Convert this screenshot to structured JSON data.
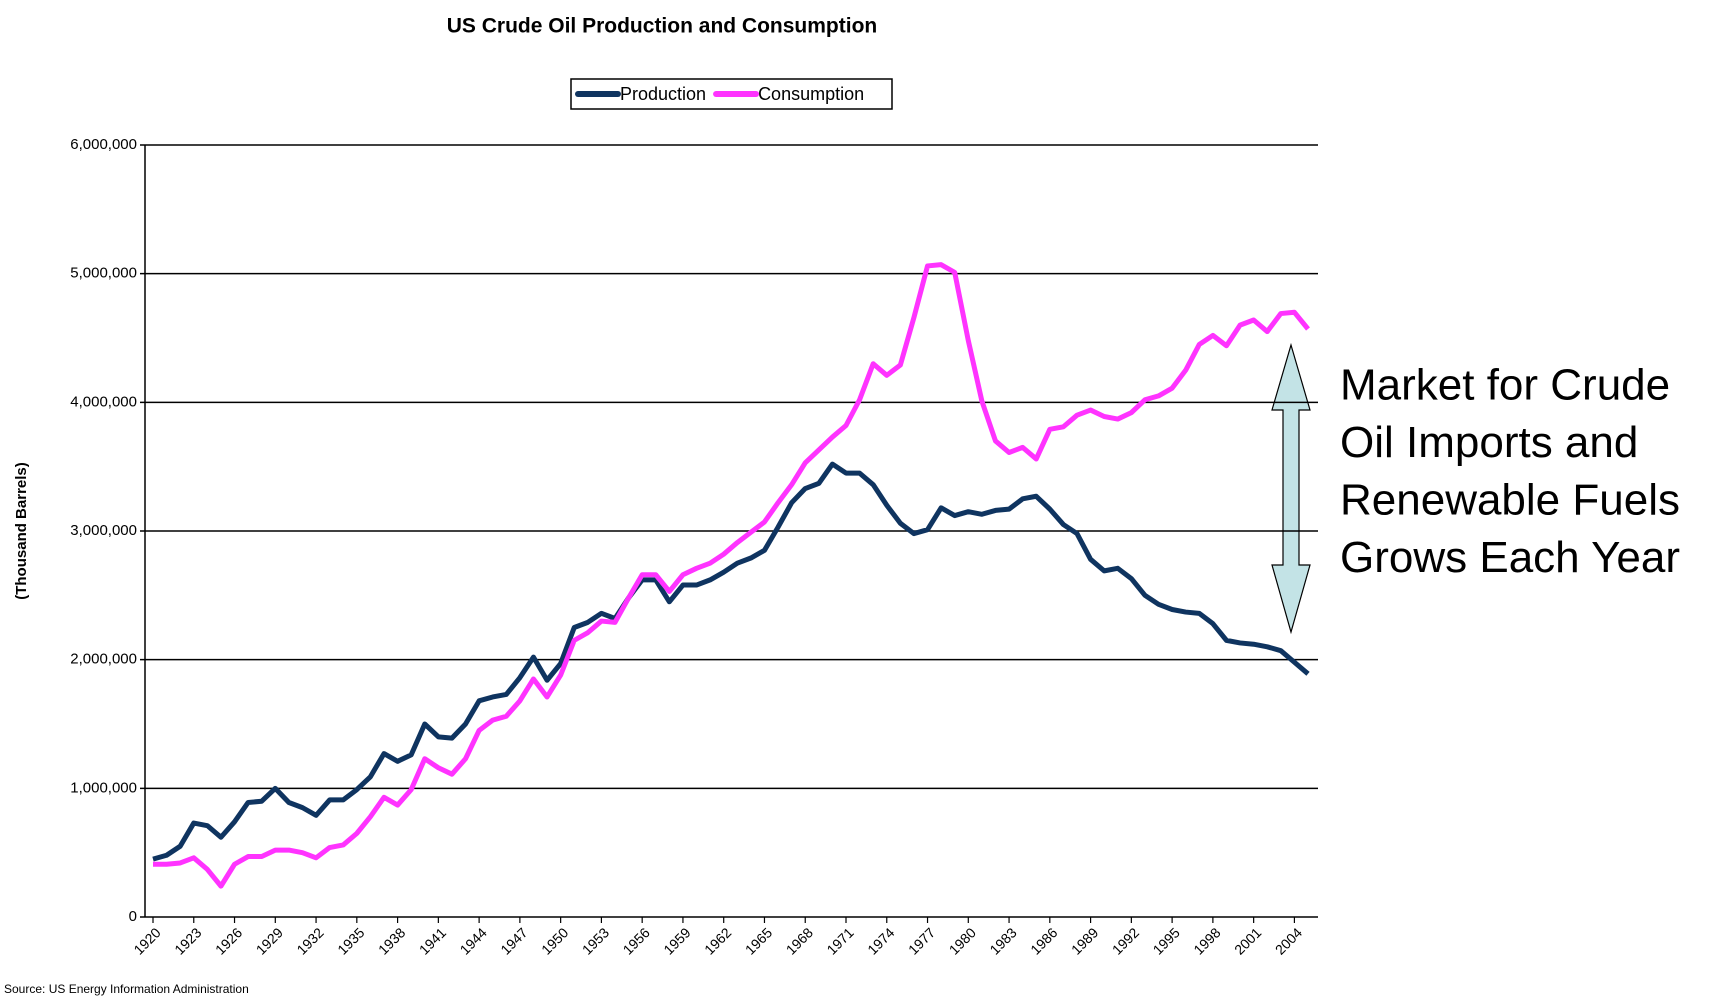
{
  "chart_data": {
    "type": "line",
    "title": "US Crude Oil Production and Consumption",
    "y_label": "(Thousand Barrels)",
    "source": "Source: US Energy Information Administration",
    "annotation": [
      "Market for Crude",
      "Oil Imports and",
      "Renewable Fuels",
      "Grows Each Year"
    ],
    "legend": "top",
    "grid": true,
    "x": [
      1920,
      1921,
      1922,
      1923,
      1924,
      1925,
      1926,
      1927,
      1928,
      1929,
      1930,
      1931,
      1932,
      1933,
      1934,
      1935,
      1936,
      1937,
      1938,
      1939,
      1940,
      1941,
      1942,
      1943,
      1944,
      1945,
      1946,
      1947,
      1948,
      1949,
      1950,
      1951,
      1952,
      1953,
      1954,
      1955,
      1956,
      1957,
      1958,
      1959,
      1960,
      1961,
      1962,
      1963,
      1964,
      1965,
      1966,
      1967,
      1968,
      1969,
      1970,
      1971,
      1972,
      1973,
      1974,
      1975,
      1976,
      1977,
      1978,
      1979,
      1980,
      1981,
      1982,
      1983,
      1984,
      1985,
      1986,
      1987,
      1988,
      1989,
      1990,
      1991,
      1992,
      1993,
      1994,
      1995,
      1996,
      1997,
      1998,
      1999,
      2000,
      2001,
      2002,
      2003,
      2004,
      2005
    ],
    "xlim": [
      1920,
      2005
    ],
    "xticks": [
      1920,
      1923,
      1926,
      1929,
      1932,
      1935,
      1938,
      1941,
      1944,
      1947,
      1950,
      1953,
      1956,
      1959,
      1962,
      1965,
      1968,
      1971,
      1974,
      1977,
      1980,
      1983,
      1986,
      1989,
      1992,
      1995,
      1998,
      2001,
      2004
    ],
    "ylim": [
      0,
      6000000
    ],
    "yticks": [
      0,
      {
        "value": 1000000,
        "label": "1,000,000"
      },
      {
        "value": 2000000,
        "label": "2,000,000"
      },
      {
        "value": 3000000,
        "label": "3,000,000"
      },
      {
        "value": 4000000,
        "label": "4,000,000"
      },
      {
        "value": 5000000,
        "label": "5,000,000"
      },
      {
        "value": 6000000,
        "label": "6,000,000"
      }
    ],
    "series": [
      {
        "name": "Production",
        "color": "#0f3460",
        "values": [
          450000,
          480000,
          550000,
          730000,
          710000,
          620000,
          740000,
          890000,
          900000,
          1000000,
          890000,
          850000,
          790000,
          910000,
          910000,
          990000,
          1090000,
          1270000,
          1210000,
          1260000,
          1500000,
          1400000,
          1390000,
          1500000,
          1680000,
          1710000,
          1730000,
          1860000,
          2020000,
          1840000,
          1970000,
          2250000,
          2290000,
          2360000,
          2320000,
          2480000,
          2620000,
          2620000,
          2450000,
          2580000,
          2580000,
          2620000,
          2680000,
          2750000,
          2790000,
          2850000,
          3030000,
          3220000,
          3330000,
          3370000,
          3520000,
          3450000,
          3450000,
          3360000,
          3200000,
          3060000,
          2980000,
          3010000,
          3180000,
          3120000,
          3150000,
          3130000,
          3160000,
          3170000,
          3250000,
          3270000,
          3170000,
          3050000,
          2980000,
          2780000,
          2690000,
          2710000,
          2630000,
          2500000,
          2430000,
          2390000,
          2370000,
          2360000,
          2280000,
          2150000,
          2130000,
          2120000,
          2100000,
          2070000,
          1980000,
          1890000
        ]
      },
      {
        "name": "Consumption",
        "color": "#ff33ff",
        "values": [
          410000,
          410000,
          420000,
          460000,
          370000,
          240000,
          410000,
          470000,
          470000,
          520000,
          520000,
          500000,
          460000,
          540000,
          560000,
          650000,
          780000,
          930000,
          870000,
          990000,
          1230000,
          1160000,
          1110000,
          1230000,
          1450000,
          1530000,
          1560000,
          1680000,
          1850000,
          1710000,
          1880000,
          2150000,
          2210000,
          2300000,
          2290000,
          2480000,
          2660000,
          2660000,
          2530000,
          2660000,
          2710000,
          2750000,
          2820000,
          2910000,
          2990000,
          3070000,
          3220000,
          3360000,
          3530000,
          3630000,
          3730000,
          3820000,
          4020000,
          4300000,
          4210000,
          4290000,
          4660000,
          5060000,
          5070000,
          5010000,
          4480000,
          4010000,
          3700000,
          3610000,
          3650000,
          3560000,
          3790000,
          3810000,
          3900000,
          3940000,
          3890000,
          3870000,
          3920000,
          4020000,
          4050000,
          4110000,
          4250000,
          4450000,
          4520000,
          4440000,
          4600000,
          4640000,
          4550000,
          4690000,
          4700000,
          4570000
        ]
      }
    ]
  }
}
